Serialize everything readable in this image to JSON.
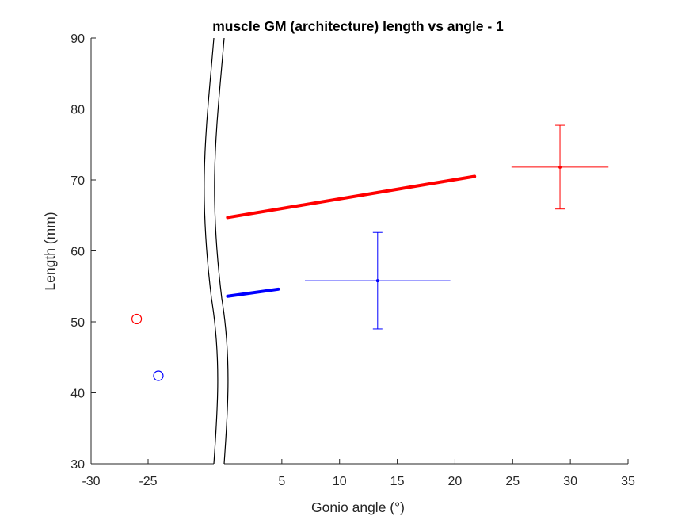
{
  "chart_data": {
    "type": "scatter",
    "title": "muscle GM (architecture) length vs angle - 1",
    "xlabel": "Gonio angle (°)",
    "ylabel": "Length (mm)",
    "ylim": [
      30,
      90
    ],
    "y_ticks": [
      30,
      40,
      50,
      60,
      70,
      80,
      90
    ],
    "x_axis": {
      "broken": true,
      "left_segment": {
        "range": [
          -30,
          -20
        ],
        "ticks": [
          -30,
          -25
        ]
      },
      "right_segment": {
        "range": [
          0,
          35
        ],
        "ticks": [
          5,
          10,
          15,
          20,
          25,
          30,
          35
        ]
      }
    },
    "grid": false,
    "series": [
      {
        "color": "#ff0000",
        "outlier": {
          "x": -26,
          "y": 50.4
        },
        "line": [
          [
            0.3,
            64.7
          ],
          [
            21.7,
            70.5
          ]
        ],
        "mean": {
          "x": 29.1,
          "y": 71.8,
          "xerr": 4.2,
          "yerr": 5.9
        }
      },
      {
        "color": "#0000ff",
        "outlier": {
          "x": -24.1,
          "y": 42.4
        },
        "line": [
          [
            0.3,
            53.6
          ],
          [
            4.7,
            54.6
          ]
        ],
        "mean": {
          "x": 13.3,
          "y": 55.8,
          "xerr": 6.3,
          "yerr": 6.8
        }
      }
    ]
  }
}
